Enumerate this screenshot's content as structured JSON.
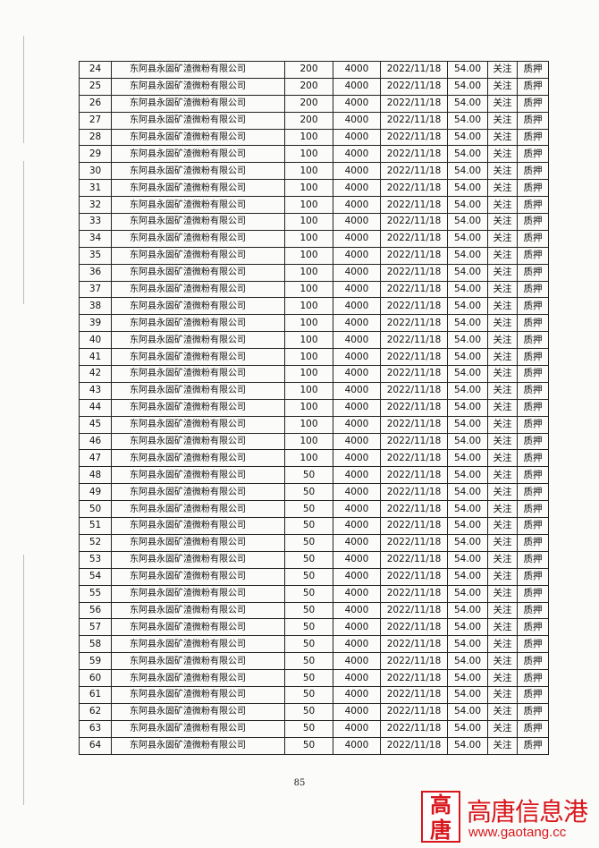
{
  "table": {
    "rows": [
      [
        "24",
        "东阿县永固矿渣微粉有限公司",
        "200",
        "4000",
        "2022/11/18",
        "54.00",
        "关注",
        "质押"
      ],
      [
        "25",
        "东阿县永固矿渣微粉有限公司",
        "200",
        "4000",
        "2022/11/18",
        "54.00",
        "关注",
        "质押"
      ],
      [
        "26",
        "东阿县永固矿渣微粉有限公司",
        "200",
        "4000",
        "2022/11/18",
        "54.00",
        "关注",
        "质押"
      ],
      [
        "27",
        "东阿县永固矿渣微粉有限公司",
        "200",
        "4000",
        "2022/11/18",
        "54.00",
        "关注",
        "质押"
      ],
      [
        "28",
        "东阿县永固矿渣微粉有限公司",
        "100",
        "4000",
        "2022/11/18",
        "54.00",
        "关注",
        "质押"
      ],
      [
        "29",
        "东阿县永固矿渣微粉有限公司",
        "100",
        "4000",
        "2022/11/18",
        "54.00",
        "关注",
        "质押"
      ],
      [
        "30",
        "东阿县永固矿渣微粉有限公司",
        "100",
        "4000",
        "2022/11/18",
        "54.00",
        "关注",
        "质押"
      ],
      [
        "31",
        "东阿县永固矿渣微粉有限公司",
        "100",
        "4000",
        "2022/11/18",
        "54.00",
        "关注",
        "质押"
      ],
      [
        "32",
        "东阿县永固矿渣微粉有限公司",
        "100",
        "4000",
        "2022/11/18",
        "54.00",
        "关注",
        "质押"
      ],
      [
        "33",
        "东阿县永固矿渣微粉有限公司",
        "100",
        "4000",
        "2022/11/18",
        "54.00",
        "关注",
        "质押"
      ],
      [
        "34",
        "东阿县永固矿渣微粉有限公司",
        "100",
        "4000",
        "2022/11/18",
        "54.00",
        "关注",
        "质押"
      ],
      [
        "35",
        "东阿县永固矿渣微粉有限公司",
        "100",
        "4000",
        "2022/11/18",
        "54.00",
        "关注",
        "质押"
      ],
      [
        "36",
        "东阿县永固矿渣微粉有限公司",
        "100",
        "4000",
        "2022/11/18",
        "54.00",
        "关注",
        "质押"
      ],
      [
        "37",
        "东阿县永固矿渣微粉有限公司",
        "100",
        "4000",
        "2022/11/18",
        "54.00",
        "关注",
        "质押"
      ],
      [
        "38",
        "东阿县永固矿渣微粉有限公司",
        "100",
        "4000",
        "2022/11/18",
        "54.00",
        "关注",
        "质押"
      ],
      [
        "39",
        "东阿县永固矿渣微粉有限公司",
        "100",
        "4000",
        "2022/11/18",
        "54.00",
        "关注",
        "质押"
      ],
      [
        "40",
        "东阿县永固矿渣微粉有限公司",
        "100",
        "4000",
        "2022/11/18",
        "54.00",
        "关注",
        "质押"
      ],
      [
        "41",
        "东阿县永固矿渣微粉有限公司",
        "100",
        "4000",
        "2022/11/18",
        "54.00",
        "关注",
        "质押"
      ],
      [
        "42",
        "东阿县永固矿渣微粉有限公司",
        "100",
        "4000",
        "2022/11/18",
        "54.00",
        "关注",
        "质押"
      ],
      [
        "43",
        "东阿县永固矿渣微粉有限公司",
        "100",
        "4000",
        "2022/11/18",
        "54.00",
        "关注",
        "质押"
      ],
      [
        "44",
        "东阿县永固矿渣微粉有限公司",
        "100",
        "4000",
        "2022/11/18",
        "54.00",
        "关注",
        "质押"
      ],
      [
        "45",
        "东阿县永固矿渣微粉有限公司",
        "100",
        "4000",
        "2022/11/18",
        "54.00",
        "关注",
        "质押"
      ],
      [
        "46",
        "东阿县永固矿渣微粉有限公司",
        "100",
        "4000",
        "2022/11/18",
        "54.00",
        "关注",
        "质押"
      ],
      [
        "47",
        "东阿县永固矿渣微粉有限公司",
        "100",
        "4000",
        "2022/11/18",
        "54.00",
        "关注",
        "质押"
      ],
      [
        "48",
        "东阿县永固矿渣微粉有限公司",
        "50",
        "4000",
        "2022/11/18",
        "54.00",
        "关注",
        "质押"
      ],
      [
        "49",
        "东阿县永固矿渣微粉有限公司",
        "50",
        "4000",
        "2022/11/18",
        "54.00",
        "关注",
        "质押"
      ],
      [
        "50",
        "东阿县永固矿渣微粉有限公司",
        "50",
        "4000",
        "2022/11/18",
        "54.00",
        "关注",
        "质押"
      ],
      [
        "51",
        "东阿县永固矿渣微粉有限公司",
        "50",
        "4000",
        "2022/11/18",
        "54.00",
        "关注",
        "质押"
      ],
      [
        "52",
        "东阿县永固矿渣微粉有限公司",
        "50",
        "4000",
        "2022/11/18",
        "54.00",
        "关注",
        "质押"
      ],
      [
        "53",
        "东阿县永固矿渣微粉有限公司",
        "50",
        "4000",
        "2022/11/18",
        "54.00",
        "关注",
        "质押"
      ],
      [
        "54",
        "东阿县永固矿渣微粉有限公司",
        "50",
        "4000",
        "2022/11/18",
        "54.00",
        "关注",
        "质押"
      ],
      [
        "55",
        "东阿县永固矿渣微粉有限公司",
        "50",
        "4000",
        "2022/11/18",
        "54.00",
        "关注",
        "质押"
      ],
      [
        "56",
        "东阿县永固矿渣微粉有限公司",
        "50",
        "4000",
        "2022/11/18",
        "54.00",
        "关注",
        "质押"
      ],
      [
        "57",
        "东阿县永固矿渣微粉有限公司",
        "50",
        "4000",
        "2022/11/18",
        "54.00",
        "关注",
        "质押"
      ],
      [
        "58",
        "东阿县永固矿渣微粉有限公司",
        "50",
        "4000",
        "2022/11/18",
        "54.00",
        "关注",
        "质押"
      ],
      [
        "59",
        "东阿县永固矿渣微粉有限公司",
        "50",
        "4000",
        "2022/11/18",
        "54.00",
        "关注",
        "质押"
      ],
      [
        "60",
        "东阿县永固矿渣微粉有限公司",
        "50",
        "4000",
        "2022/11/18",
        "54.00",
        "关注",
        "质押"
      ],
      [
        "61",
        "东阿县永固矿渣微粉有限公司",
        "50",
        "4000",
        "2022/11/18",
        "54.00",
        "关注",
        "质押"
      ],
      [
        "62",
        "东阿县永固矿渣微粉有限公司",
        "50",
        "4000",
        "2022/11/18",
        "54.00",
        "关注",
        "质押"
      ],
      [
        "63",
        "东阿县永固矿渣微粉有限公司",
        "50",
        "4000",
        "2022/11/18",
        "54.00",
        "关注",
        "质押"
      ],
      [
        "64",
        "东阿县永固矿渣微粉有限公司",
        "50",
        "4000",
        "2022/11/18",
        "54.00",
        "关注",
        "质押"
      ]
    ]
  },
  "page_number": "85",
  "watermark": {
    "logo": [
      "高",
      "唐"
    ],
    "name": "高唐信息港",
    "url": "www.gaotang.cc"
  }
}
